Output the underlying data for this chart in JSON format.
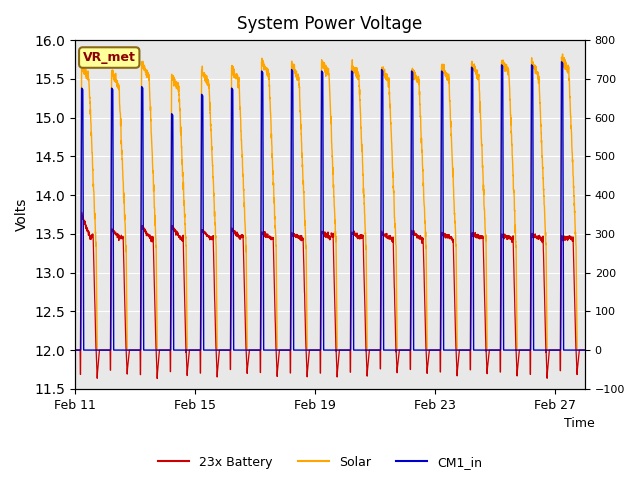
{
  "title": "System Power Voltage",
  "xlabel": "Time",
  "ylabel_left": "Volts",
  "ylim_left": [
    11.5,
    16.0
  ],
  "ylim_right": [
    -100,
    800
  ],
  "yticks_left": [
    11.5,
    12.0,
    12.5,
    13.0,
    13.5,
    14.0,
    14.5,
    15.0,
    15.5,
    16.0
  ],
  "yticks_right": [
    -100,
    0,
    100,
    200,
    300,
    400,
    500,
    600,
    700,
    800
  ],
  "xdate_labels": [
    "Feb 11",
    "Feb 15",
    "Feb 19",
    "Feb 23",
    "Feb 27"
  ],
  "xdate_positions": [
    0,
    4,
    8,
    12,
    16
  ],
  "n_cycles": 17,
  "background_color": "#ffffff",
  "plot_bg_color": "#e8e8e8",
  "grid_color": "#ffffff",
  "annotation_text": "VR_met",
  "annotation_color": "#8b0000",
  "annotation_bg": "#ffff99",
  "annotation_border": "#8b6914",
  "battery_color": "#cc0000",
  "solar_color": "#ffa500",
  "cm1_color": "#0000cc",
  "legend_labels": [
    "23x Battery",
    "Solar",
    "CM1_in"
  ]
}
